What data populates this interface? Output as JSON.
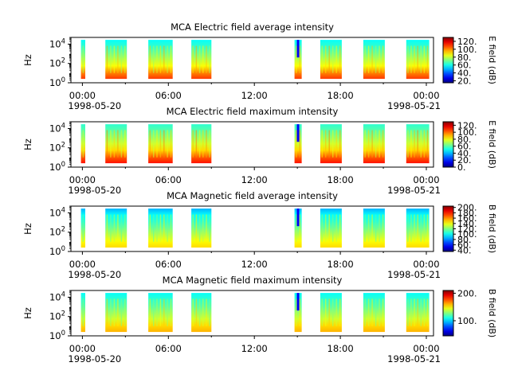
{
  "figure": {
    "title_common": "MCA"
  },
  "chart_data": [
    {
      "type": "heatmap",
      "title": "MCA  Electric field average intensity",
      "ylabel": "Hz",
      "ylog": true,
      "ylim": [
        1,
        50000
      ],
      "yticks": [
        {
          "label_base": "10",
          "label_exp": "0",
          "value": 1
        },
        {
          "label_base": "10",
          "label_exp": "2",
          "value": 100
        },
        {
          "label_base": "10",
          "label_exp": "4",
          "value": 10000
        }
      ],
      "x_ticklabels": [
        "00:00",
        "06:00",
        "12:00",
        "18:00",
        "00:00"
      ],
      "x_datelabels": [
        "1998-05-20",
        "1998-05-21"
      ],
      "x_hours": [
        0,
        6,
        12,
        18,
        24
      ],
      "xlim_hours": [
        -0.8,
        24.5
      ],
      "colorbar": {
        "label": "E field (dB)",
        "range": [
          15,
          130
        ],
        "ticks": [
          "20.",
          "40.",
          "60.",
          "80.",
          "100.",
          "120."
        ],
        "tick_values": [
          20,
          40,
          60,
          80,
          100,
          120
        ]
      },
      "data_intervals_hours": [
        [
          -0.1,
          0.2
        ],
        [
          1.6,
          3.1
        ],
        [
          4.6,
          6.3
        ],
        [
          7.6,
          9.0
        ],
        [
          14.8,
          15.3
        ],
        [
          16.6,
          18.1
        ],
        [
          19.6,
          21.1
        ],
        [
          22.6,
          24.2
        ]
      ],
      "low_band": "orange-red",
      "mid_band": "yellow-green",
      "high_band": "green-cyan"
    },
    {
      "type": "heatmap",
      "title": "MCA  Electric field maximum intensity",
      "ylabel": "Hz",
      "ylog": true,
      "ylim": [
        1,
        50000
      ],
      "yticks": [
        {
          "label_base": "10",
          "label_exp": "0",
          "value": 1
        },
        {
          "label_base": "10",
          "label_exp": "2",
          "value": 100
        },
        {
          "label_base": "10",
          "label_exp": "4",
          "value": 10000
        }
      ],
      "x_ticklabels": [
        "00:00",
        "06:00",
        "12:00",
        "18:00",
        "00:00"
      ],
      "x_datelabels": [
        "1998-05-20",
        "1998-05-21"
      ],
      "x_hours": [
        0,
        6,
        12,
        18,
        24
      ],
      "xlim_hours": [
        -0.8,
        24.5
      ],
      "colorbar": {
        "label": "E field (dB)",
        "range": [
          0,
          130
        ],
        "ticks": [
          "0.",
          "20.",
          "40.",
          "60.",
          "80.",
          "100.",
          "120."
        ],
        "tick_values": [
          0,
          20,
          40,
          60,
          80,
          100,
          120
        ]
      },
      "data_intervals_hours": [
        [
          -0.1,
          0.2
        ],
        [
          1.6,
          3.1
        ],
        [
          4.6,
          6.3
        ],
        [
          7.6,
          9.0
        ],
        [
          14.8,
          15.3
        ],
        [
          16.6,
          18.1
        ],
        [
          19.6,
          21.1
        ],
        [
          22.6,
          24.2
        ]
      ],
      "low_band": "orange-red",
      "mid_band": "yellow-green",
      "high_band": "green-cyan"
    },
    {
      "type": "heatmap",
      "title": "MCA  Magnetic field average intensity",
      "ylabel": "Hz",
      "ylog": true,
      "ylim": [
        1,
        50000
      ],
      "yticks": [
        {
          "label_base": "10",
          "label_exp": "0",
          "value": 1
        },
        {
          "label_base": "10",
          "label_exp": "2",
          "value": 100
        },
        {
          "label_base": "10",
          "label_exp": "4",
          "value": 10000
        }
      ],
      "x_ticklabels": [
        "00:00",
        "06:00",
        "12:00",
        "18:00",
        "00:00"
      ],
      "x_datelabels": [
        "1998-05-20",
        "1998-05-21"
      ],
      "x_hours": [
        0,
        6,
        12,
        18,
        24
      ],
      "xlim_hours": [
        -0.8,
        24.5
      ],
      "colorbar": {
        "label": "B field (dB)",
        "range": [
          35,
          205
        ],
        "ticks": [
          "40.",
          "60.",
          "80.",
          "100.",
          "120.",
          "140.",
          "160.",
          "180.",
          "200."
        ],
        "tick_values": [
          40,
          60,
          80,
          100,
          120,
          140,
          160,
          180,
          200
        ]
      },
      "data_intervals_hours": [
        [
          -0.1,
          0.2
        ],
        [
          1.6,
          3.1
        ],
        [
          4.6,
          6.3
        ],
        [
          7.6,
          9.0
        ],
        [
          14.8,
          15.3
        ],
        [
          16.6,
          18.1
        ],
        [
          19.6,
          21.1
        ],
        [
          22.6,
          24.2
        ]
      ],
      "low_band": "yellow",
      "mid_band": "green",
      "high_band": "cyan-blue"
    },
    {
      "type": "heatmap",
      "title": "MCA  Magnetic field maximum intensity",
      "ylabel": "Hz",
      "ylog": true,
      "ylim": [
        1,
        50000
      ],
      "yticks": [
        {
          "label_base": "10",
          "label_exp": "0",
          "value": 1
        },
        {
          "label_base": "10",
          "label_exp": "2",
          "value": 100
        },
        {
          "label_base": "10",
          "label_exp": "4",
          "value": 10000
        }
      ],
      "x_ticklabels": [
        "00:00",
        "06:00",
        "12:00",
        "18:00",
        "00:00"
      ],
      "x_datelabels": [
        "1998-05-20",
        "1998-05-21"
      ],
      "x_hours": [
        0,
        6,
        12,
        18,
        24
      ],
      "xlim_hours": [
        -0.8,
        24.5
      ],
      "colorbar": {
        "label": "B field (dB)",
        "range": [
          45,
          210
        ],
        "ticks": [
          "100.",
          "200."
        ],
        "tick_values": [
          100,
          200
        ]
      },
      "data_intervals_hours": [
        [
          -0.1,
          0.2
        ],
        [
          1.6,
          3.1
        ],
        [
          4.6,
          6.3
        ],
        [
          7.6,
          9.0
        ],
        [
          14.8,
          15.3
        ],
        [
          16.6,
          18.1
        ],
        [
          19.6,
          21.1
        ],
        [
          22.6,
          24.2
        ]
      ],
      "low_band": "yellow",
      "mid_band": "green",
      "high_band": "cyan"
    }
  ]
}
